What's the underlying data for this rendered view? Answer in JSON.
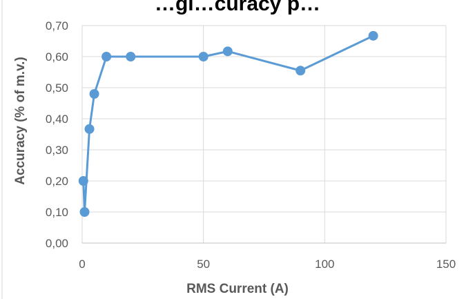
{
  "chart_data": {
    "type": "scatter",
    "title": "…gi…curacy p…",
    "xlabel": "RMS Current (A)",
    "ylabel": "Accuracy (% of m.v.)",
    "xlim": [
      0,
      150
    ],
    "ylim": [
      0,
      0.7
    ],
    "x_ticks": [
      "0",
      "50",
      "100",
      "150"
    ],
    "y_ticks": [
      "0,00",
      "0,10",
      "0,20",
      "0,30",
      "0,40",
      "0,50",
      "0,60",
      "0,70"
    ],
    "grid": true,
    "legend": "none",
    "series": [
      {
        "x": [
          0.5,
          1,
          3,
          5,
          10,
          20,
          50,
          60,
          90,
          120
        ],
        "y": [
          0.2,
          0.1,
          0.367,
          0.48,
          0.6,
          0.6,
          0.6,
          0.617,
          0.555,
          0.667
        ],
        "color": "#5b9bd5",
        "style": "line-markers"
      }
    ]
  }
}
